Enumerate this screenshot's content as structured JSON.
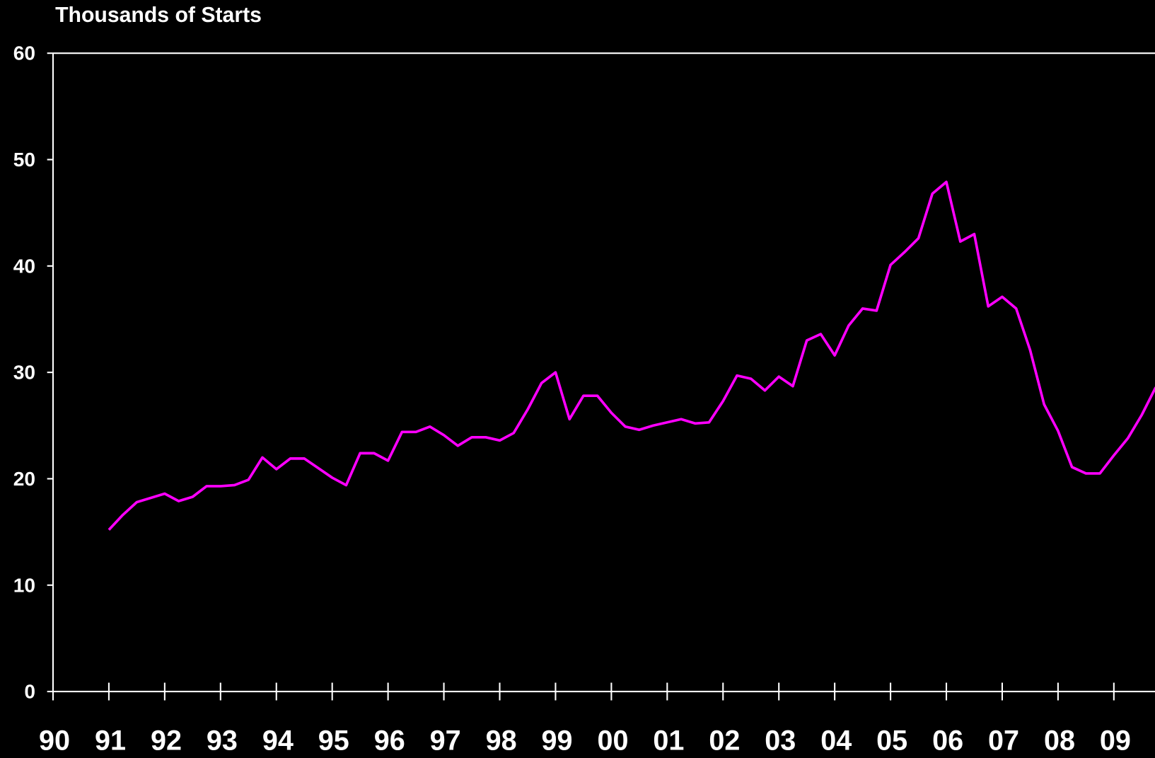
{
  "chart_data": {
    "type": "line",
    "title": "Thousands of Starts",
    "x": [
      1991,
      1991.25,
      1991.5,
      1991.75,
      1992,
      1992.25,
      1992.5,
      1992.75,
      1993,
      1993.25,
      1993.5,
      1993.75,
      1994,
      1994.25,
      1994.5,
      1994.75,
      1995,
      1995.25,
      1995.5,
      1995.75,
      1996,
      1996.25,
      1996.5,
      1996.75,
      1997,
      1997.25,
      1997.5,
      1997.75,
      1998,
      1998.25,
      1998.5,
      1998.75,
      1999,
      1999.25,
      1999.5,
      1999.75,
      2000,
      2000.25,
      2000.5,
      2000.75,
      2001,
      2001.25,
      2001.5,
      2001.75,
      2002,
      2002.25,
      2002.5,
      2002.75,
      2003,
      2003.25,
      2003.5,
      2003.75,
      2004,
      2004.25,
      2004.5,
      2004.75,
      2005,
      2005.25,
      2005.5,
      2005.75,
      2006,
      2006.25,
      2006.5,
      2006.75,
      2007,
      2007.25,
      2007.5,
      2007.75,
      2008,
      2008.25,
      2008.5,
      2008.75,
      2009,
      2009.25,
      2009.5,
      2009.75
    ],
    "series": [
      {
        "name": "Starts",
        "color": "#ff00ff",
        "values": [
          15.2,
          16.6,
          17.8,
          18.2,
          18.6,
          17.9,
          18.3,
          19.3,
          19.3,
          19.4,
          19.9,
          22.0,
          20.9,
          21.9,
          21.9,
          21.0,
          20.1,
          19.4,
          22.4,
          22.4,
          21.7,
          24.4,
          24.4,
          24.9,
          24.1,
          23.1,
          23.9,
          23.9,
          23.6,
          24.3,
          26.5,
          29.0,
          30.0,
          25.6,
          27.8,
          27.8,
          26.2,
          24.9,
          24.6,
          25.0,
          25.3,
          25.6,
          25.2,
          25.3,
          27.3,
          29.7,
          29.4,
          28.3,
          29.6,
          28.7,
          33.0,
          33.6,
          31.6,
          34.4,
          36.0,
          35.8,
          40.1,
          41.3,
          42.6,
          46.8,
          47.9,
          42.3,
          43.0,
          36.2,
          37.1,
          36.0,
          32.1,
          27.0,
          24.5,
          21.1,
          20.5,
          20.5,
          22.2,
          23.8,
          26.0,
          28.6
        ]
      }
    ],
    "xlim": [
      1990,
      2009.75
    ],
    "xticks": [
      {
        "value": 1990,
        "label": "90"
      },
      {
        "value": 1991,
        "label": "91"
      },
      {
        "value": 1992,
        "label": "92"
      },
      {
        "value": 1993,
        "label": "93"
      },
      {
        "value": 1994,
        "label": "94"
      },
      {
        "value": 1995,
        "label": "95"
      },
      {
        "value": 1996,
        "label": "96"
      },
      {
        "value": 1997,
        "label": "97"
      },
      {
        "value": 1998,
        "label": "98"
      },
      {
        "value": 1999,
        "label": "99"
      },
      {
        "value": 2000,
        "label": "00"
      },
      {
        "value": 2001,
        "label": "01"
      },
      {
        "value": 2002,
        "label": "02"
      },
      {
        "value": 2003,
        "label": "03"
      },
      {
        "value": 2004,
        "label": "04"
      },
      {
        "value": 2005,
        "label": "05"
      },
      {
        "value": 2006,
        "label": "06"
      },
      {
        "value": 2007,
        "label": "07"
      },
      {
        "value": 2008,
        "label": "08"
      },
      {
        "value": 2009,
        "label": "09"
      }
    ],
    "ylim": [
      0,
      60
    ],
    "yticks": [
      0,
      10,
      20,
      30,
      40,
      50,
      60
    ],
    "grid": false
  }
}
